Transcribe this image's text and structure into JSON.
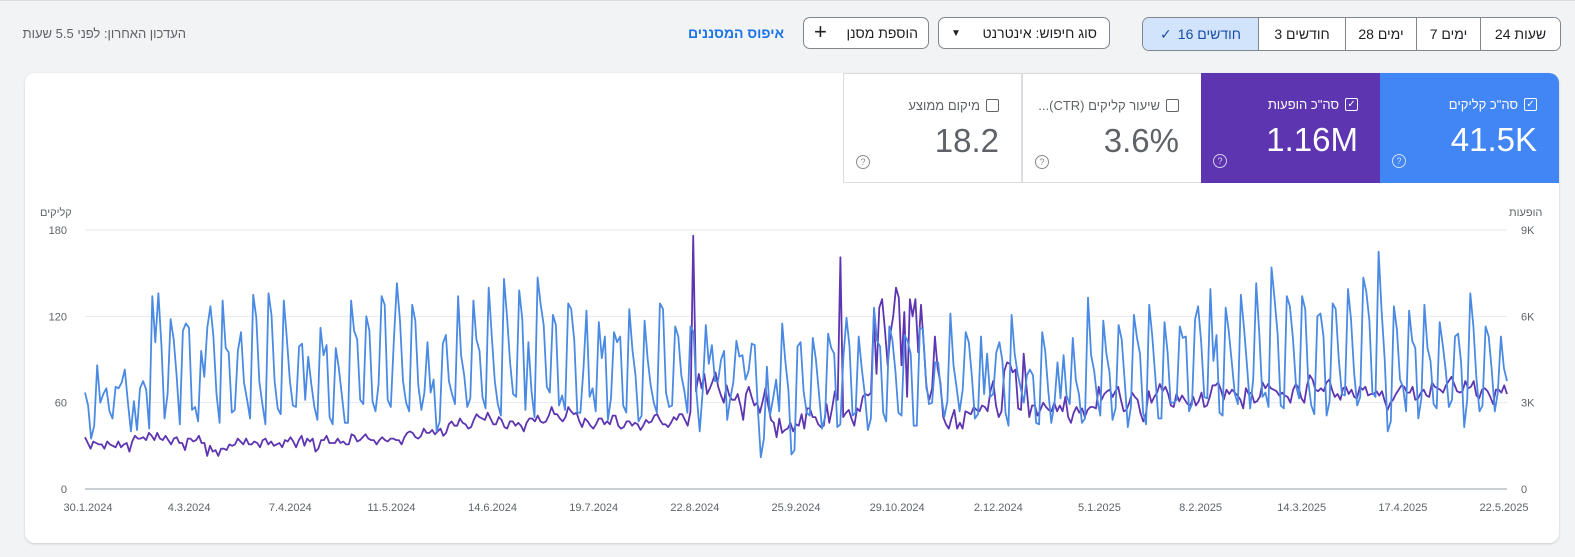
{
  "topbar": {
    "ranges": [
      {
        "label": "24 שעות",
        "selected": false
      },
      {
        "label": "7 ימים",
        "selected": false
      },
      {
        "label": "28 ימים",
        "selected": false
      },
      {
        "label": "3 חודשים",
        "selected": false
      },
      {
        "label": "16 חודשים",
        "selected": true
      }
    ],
    "search_type_label": "סוג חיפוש: אינטרנט",
    "add_filter_label": "הוספת מסנן",
    "reset_filters_label": "איפוס המסננים",
    "last_updated": "העדכון האחרון: לפני 5.5 שעות"
  },
  "metrics": {
    "clicks": {
      "label": "סה\"כ קליקים",
      "value": "41.5K",
      "checked": true,
      "color": "#4285f4"
    },
    "impressions": {
      "label": "סה\"כ הופעות",
      "value": "1.16M",
      "checked": true,
      "color": "#5e35b1"
    },
    "ctr": {
      "label": "שיעור קליקים (CTR)...",
      "value": "3.6%",
      "checked": false
    },
    "position": {
      "label": "מיקום ממוצע",
      "value": "18.2",
      "checked": false
    }
  },
  "chart_data": {
    "type": "line",
    "left_axis_title": "קליקים",
    "right_axis_title": "הופעות",
    "left_ticks": [
      0,
      60,
      120,
      180
    ],
    "right_ticks": [
      "0",
      "3K",
      "6K",
      "9K"
    ],
    "left_range": [
      0,
      180
    ],
    "right_range": [
      0,
      9000
    ],
    "x_labels": [
      "30.1.2024",
      "4.3.2024",
      "7.4.2024",
      "11.5.2024",
      "14.6.2024",
      "19.7.2024",
      "22.8.2024",
      "25.9.2024",
      "29.10.2024",
      "2.12.2024",
      "5.1.2025",
      "8.2.2025",
      "14.3.2025",
      "17.4.2025",
      "22.5.2025"
    ],
    "grid": true,
    "series": [
      {
        "name": "קליקים",
        "axis": "left",
        "color": "#4a8ae3",
        "values": [
          67,
          58,
          35,
          44,
          86,
          60,
          66,
          70,
          54,
          49,
          71,
          70,
          74,
          83,
          61,
          40,
          61,
          41,
          70,
          75,
          69,
          42,
          134,
          102,
          136,
          99,
          49,
          66,
          118,
          104,
          78,
          45,
          110,
          115,
          112,
          55,
          57,
          47,
          96,
          78,
          112,
          127,
          106,
          66,
          46,
          131,
          98,
          95,
          53,
          55,
          96,
          109,
          74,
          62,
          49,
          135,
          119,
          75,
          59,
          45,
          136,
          121,
          75,
          56,
          52,
          131,
          105,
          75,
          58,
          57,
          99,
          101,
          62,
          92,
          73,
          57,
          48,
          112,
          93,
          100,
          50,
          45,
          98,
          84,
          65,
          46,
          46,
          131,
          110,
          104,
          62,
          59,
          120,
          110,
          61,
          54,
          73,
          134,
          128,
          62,
          57,
          104,
          143,
          117,
          75,
          60,
          54,
          128,
          117,
          72,
          55,
          67,
          102,
          67,
          76,
          40,
          47,
          101,
          107,
          75,
          66,
          59,
          134,
          93,
          79,
          57,
          63,
          131,
          104,
          96,
          64,
          56,
          140,
          107,
          75,
          59,
          51,
          146,
          120,
          88,
          66,
          64,
          138,
          118,
          55,
          102,
          68,
          50,
          147,
          128,
          114,
          71,
          67,
          121,
          114,
          58,
          65,
          55,
          129,
          125,
          103,
          53,
          53,
          84,
          124,
          64,
          70,
          54,
          116,
          91,
          106,
          48,
          63,
          109,
          102,
          106,
          58,
          53,
          125,
          97,
          79,
          47,
          51,
          117,
          90,
          72,
          60,
          53,
          129,
          125,
          67,
          57,
          58,
          113,
          106,
          79,
          68,
          53,
          113,
          109,
          66,
          40,
          68,
          114,
          87,
          100,
          75,
          75,
          90,
          96,
          48,
          63,
          74,
          103,
          92,
          93,
          76,
          82,
          101,
          100,
          56,
          22,
          35,
          85,
          51,
          63,
          76,
          54,
          115,
          89,
          69,
          24,
          27,
          99,
          102,
          68,
          53,
          51,
          105,
          90,
          67,
          42,
          50,
          108,
          98,
          94,
          43,
          45,
          92,
          119,
          99,
          51,
          53,
          106,
          84,
          66,
          41,
          49,
          126,
          103,
          99,
          53,
          47,
          113,
          104,
          82,
          53,
          51,
          107,
          103,
          94,
          44,
          44,
          112,
          111,
          75,
          59,
          60,
          88,
          88,
          65,
          50,
          61,
          122,
          86,
          71,
          54,
          69,
          109,
          102,
          79,
          49,
          52,
          106,
          66,
          94,
          64,
          66,
          95,
          102,
          89,
          53,
          44,
          121,
          94,
          80,
          70,
          60,
          79,
          83,
          79,
          46,
          45,
          109,
          96,
          68,
          46,
          59,
          88,
          63,
          93,
          65,
          59,
          105,
          76,
          66,
          46,
          49,
          133,
          93,
          82,
          63,
          51,
          117,
          94,
          81,
          48,
          56,
          114,
          104,
          75,
          43,
          57,
          121,
          105,
          94,
          53,
          45,
          128,
          106,
          78,
          49,
          49,
          116,
          95,
          60,
          60,
          62,
          113,
          105,
          106,
          54,
          59,
          118,
          127,
          102,
          64,
          63,
          139,
          89,
          107,
          53,
          51,
          126,
          110,
          88,
          66,
          59,
          135,
          112,
          85,
          56,
          76,
          143,
          108,
          64,
          67,
          57,
          154,
          132,
          108,
          58,
          56,
          134,
          127,
          105,
          72,
          63,
          134,
          125,
          75,
          58,
          52,
          120,
          122,
          106,
          51,
          61,
          129,
          125,
          90,
          66,
          65,
          139,
          118,
          81,
          58,
          64,
          147,
          137,
          117,
          67,
          64,
          165,
          124,
          90,
          40,
          47,
          127,
          111,
          76,
          71,
          54,
          124,
          103,
          98,
          49,
          63,
          128,
          98,
          89,
          59,
          56,
          116,
          100,
          82,
          57,
          62,
          106,
          108,
          88,
          43,
          62,
          136,
          113,
          77,
          54,
          58,
          113,
          106,
          83,
          54,
          67,
          106,
          84,
          75
        ]
      },
      {
        "name": "הופעות",
        "axis": "right",
        "color": "#5e35b1",
        "values": [
          1800,
          1600,
          1400,
          1650,
          1600,
          1550,
          1550,
          1400,
          1650,
          1550,
          1500,
          1450,
          1650,
          1450,
          1550,
          1600,
          1300,
          1650,
          1850,
          1750,
          1750,
          1800,
          1700,
          1950,
          1850,
          1700,
          1950,
          1750,
          1700,
          1850,
          1700,
          1550,
          1750,
          1800,
          1600,
          1600,
          1350,
          1750,
          1750,
          1650,
          1700,
          1850,
          1600,
          1600,
          1150,
          1500,
          1300,
          1350,
          1150,
          1400,
          1400,
          1350,
          1550,
          1500,
          1550,
          1750,
          1650,
          1550,
          1750,
          1550,
          1550,
          1650,
          1600,
          1450,
          1700,
          1750,
          1550,
          1650,
          1500,
          1550,
          1600,
          1450,
          1700,
          1650,
          1800,
          1650,
          1450,
          1700,
          1850,
          1500,
          1750,
          1650,
          1750,
          1300,
          1400,
          1700,
          1700,
          1850,
          1600,
          1600,
          1600,
          1750,
          1600,
          1650,
          1550,
          1550,
          1900,
          1850,
          1650,
          1700,
          1800,
          1900,
          1750,
          1700,
          1700,
          1550,
          1700,
          1800,
          1700,
          1650,
          1750,
          1750,
          1700,
          1700,
          1550,
          1800,
          1950,
          2000,
          1950,
          1800,
          1750,
          1850,
          2100,
          1950,
          1950,
          2050,
          1900,
          2000,
          2100,
          1850,
          1950,
          2250,
          2350,
          2200,
          2200,
          2450,
          2300,
          2250,
          2100,
          2150,
          2400,
          2600,
          2500,
          2450,
          2400,
          2650,
          2450,
          2250,
          2250,
          2500,
          2400,
          2150,
          2100,
          2350,
          2350,
          2200,
          2300,
          2200,
          2000,
          2300,
          2450,
          2450,
          2350,
          2550,
          2350,
          2300,
          2350,
          2550,
          2850,
          2600,
          2600,
          2450,
          2350,
          2500,
          2850,
          2700,
          2600,
          2650,
          2350,
          2150,
          2450,
          2350,
          2200,
          2100,
          2250,
          2450,
          2450,
          2250,
          2350,
          2250,
          2550,
          2550,
          2200,
          2100,
          2150,
          2350,
          2350,
          2200,
          2300,
          2250,
          2050,
          2200,
          2400,
          2300,
          2350,
          2550,
          2600,
          2400,
          2250,
          2250,
          2150,
          2300,
          2500,
          2400,
          2600,
          2600,
          2400,
          2200,
          2700,
          8800,
          3400,
          4000,
          3500,
          4000,
          3300,
          3500,
          3750,
          4050,
          3550,
          3250,
          3000,
          3600,
          3250,
          3100,
          3100,
          3300,
          2900,
          2400,
          3300,
          3550,
          3200,
          2900,
          3000,
          2650,
          3050,
          3500,
          2900,
          2400,
          2300,
          1800,
          2450,
          1950,
          2050,
          2100,
          2300,
          2000,
          2250,
          2200,
          2600,
          2100,
          2800,
          2800,
          2500,
          2500,
          2250,
          2150,
          2200,
          2950,
          2300,
          2800,
          3400,
          3100,
          8050,
          2500,
          2650,
          2750,
          2450,
          2200,
          2800,
          2700,
          3200,
          3300,
          3250,
          3350,
          6000,
          4000,
          6300,
          6600,
          5550,
          4300,
          5400,
          6000,
          7000,
          6650,
          4300,
          6150,
          3200,
          6600,
          6000,
          6600,
          4750,
          6400,
          5000,
          3500,
          3100,
          3500,
          5300,
          4200,
          3700,
          2500,
          2250,
          2100,
          2450,
          2750,
          2100,
          2300,
          2100,
          2700,
          2650,
          2600,
          2850,
          2750,
          2700,
          2900,
          2850,
          2700,
          3400,
          3750,
          2900,
          2500,
          2700,
          4100,
          4400,
          4350,
          4050,
          4150,
          2800,
          2750,
          4700,
          3550,
          2500,
          2900,
          2900,
          2550,
          2750,
          3000,
          2850,
          2750,
          2700,
          3000,
          2700,
          2900,
          2700,
          3200,
          2500,
          2300,
          2650,
          2850,
          2650,
          2800,
          2500,
          2750,
          2850,
          2850,
          2800,
          3550,
          3100,
          3300,
          3400,
          3450,
          3200,
          3400,
          3550,
          3100,
          2700,
          2750,
          3000,
          3350,
          3200,
          3100,
          2650,
          2350,
          2600,
          3400,
          3000,
          3200,
          3350,
          3650,
          3400,
          3550,
          3300,
          2900,
          2850,
          3300,
          3050,
          3250,
          3100,
          2950,
          2900,
          3200,
          2900,
          3050,
          3350,
          2850,
          2900,
          3200,
          3600,
          3600,
          3700,
          3450,
          3100,
          3450,
          3300,
          3450,
          3350,
          3250,
          3100,
          2800,
          3500,
          3300,
          3350,
          3000,
          3050,
          3200,
          3700,
          3500,
          3650,
          3500,
          3450,
          3400,
          3250,
          3350,
          3250,
          3200,
          3000,
          3450,
          3650,
          3500,
          3150,
          3000,
          3600,
          3950,
          3800,
          3450,
          3400,
          3500,
          3400,
          3700,
          3800,
          3450,
          3200,
          3300,
          3100,
          3500,
          3550,
          3300,
          3450,
          3200,
          3150,
          3550,
          3450,
          3550,
          3250,
          3300,
          3300,
          3400,
          3250,
          3400,
          3050,
          2750,
          3000,
          3100,
          3300,
          3450,
          3600,
          3550,
          3350,
          3350,
          3550,
          3100,
          3150,
          3350,
          3450,
          3250,
          3200,
          3700,
          3550,
          3500,
          3450,
          3350,
          3600,
          3750,
          3900,
          3650,
          3400,
          3350,
          3400,
          3750,
          3500,
          3550,
          3750,
          3250,
          3150,
          3450,
          3500,
          3400,
          3200,
          2950,
          3450,
          3450,
          3350,
          3600,
          3300
        ]
      }
    ]
  }
}
